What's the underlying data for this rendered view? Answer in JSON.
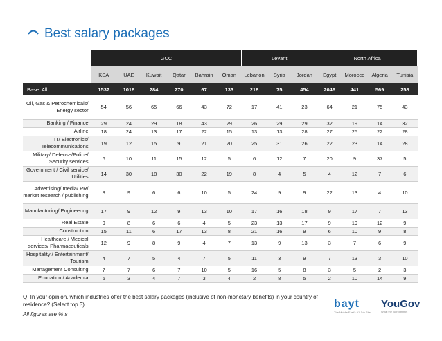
{
  "title": "Best salary packages",
  "regions": [
    {
      "label": "GCC",
      "span": 6
    },
    {
      "label": "Levant",
      "span": 3
    },
    {
      "label": "North Africa",
      "span": 4
    }
  ],
  "countries": [
    "KSA",
    "UAE",
    "Kuwait",
    "Qatar",
    "Bahrain",
    "Oman",
    "Lebanon",
    "Syria",
    "Jordan",
    "Egypt",
    "Morocco",
    "Algeria",
    "Tunisia"
  ],
  "base": {
    "label": "Base: All",
    "values": [
      "1537",
      "1018",
      "284",
      "270",
      "67",
      "133",
      "218",
      "75",
      "454",
      "2046",
      "441",
      "569",
      "258"
    ]
  },
  "rows": [
    {
      "label": "Oil, Gas & Petrochemicals/ Energy sector",
      "values": [
        "54",
        "56",
        "65",
        "66",
        "43",
        "72",
        "17",
        "41",
        "23",
        "64",
        "21",
        "75",
        "43"
      ]
    },
    {
      "label": "Banking / Finance",
      "values": [
        "29",
        "24",
        "29",
        "18",
        "43",
        "29",
        "26",
        "29",
        "29",
        "32",
        "19",
        "14",
        "32"
      ]
    },
    {
      "label": "Airline",
      "values": [
        "18",
        "24",
        "13",
        "17",
        "22",
        "15",
        "13",
        "13",
        "28",
        "27",
        "25",
        "22",
        "28"
      ]
    },
    {
      "label": "IT/ Electronics/ Telecommunications",
      "values": [
        "19",
        "12",
        "15",
        "9",
        "21",
        "20",
        "25",
        "31",
        "26",
        "22",
        "23",
        "14",
        "28"
      ]
    },
    {
      "label": "Military/ Defense/Police/ Security services",
      "values": [
        "6",
        "10",
        "11",
        "15",
        "12",
        "5",
        "6",
        "12",
        "7",
        "20",
        "9",
        "37",
        "5"
      ]
    },
    {
      "label": "Government / Civil service/ Utilities",
      "values": [
        "14",
        "30",
        "18",
        "30",
        "22",
        "19",
        "8",
        "4",
        "5",
        "4",
        "12",
        "7",
        "6"
      ]
    },
    {
      "label": "Advertising/ media/ PR/ market research / publishing",
      "values": [
        "8",
        "9",
        "6",
        "6",
        "10",
        "5",
        "24",
        "9",
        "9",
        "22",
        "13",
        "4",
        "10"
      ]
    },
    {
      "label": "Manufacturing/ Engineering",
      "values": [
        "17",
        "9",
        "12",
        "9",
        "13",
        "10",
        "17",
        "16",
        "18",
        "9",
        "17",
        "7",
        "13"
      ]
    },
    {
      "label": "Real Estate",
      "values": [
        "9",
        "8",
        "6",
        "6",
        "4",
        "5",
        "23",
        "13",
        "17",
        "9",
        "19",
        "12",
        "9"
      ]
    },
    {
      "label": "Construction",
      "values": [
        "15",
        "11",
        "6",
        "17",
        "13",
        "8",
        "21",
        "16",
        "9",
        "6",
        "10",
        "9",
        "8"
      ]
    },
    {
      "label": "Healthcare / Medical services/ Pharmaceuticals",
      "values": [
        "12",
        "9",
        "8",
        "9",
        "4",
        "7",
        "13",
        "9",
        "13",
        "3",
        "7",
        "6",
        "9"
      ]
    },
    {
      "label": "Hospitality / Entertainment/ Tourism",
      "values": [
        "4",
        "7",
        "5",
        "4",
        "7",
        "5",
        "11",
        "3",
        "9",
        "7",
        "13",
        "3",
        "10"
      ]
    },
    {
      "label": "Management Consulting",
      "values": [
        "7",
        "7",
        "6",
        "7",
        "10",
        "5",
        "16",
        "5",
        "8",
        "3",
        "5",
        "2",
        "3"
      ]
    },
    {
      "label": "Education / Academia",
      "values": [
        "5",
        "3",
        "4",
        "7",
        "3",
        "4",
        "2",
        "8",
        "5",
        "2",
        "10",
        "14",
        "9"
      ]
    }
  ],
  "footnote": "Q. In your opinion, which industries offer the best salary packages (inclusive of non-monetary benefits) in your country of residence? (Select top 3)",
  "figures_note": "All figures are % s",
  "logos": {
    "bayt": "bayt",
    "bayt_tagline": "The Middle East's #1 Job Site",
    "yougov": "YouGov",
    "yougov_tagline": "What the world thinks"
  },
  "colors": {
    "accent": "#1d6fb7",
    "header_dark": "#222222",
    "country_header": "#d7d7d7"
  }
}
